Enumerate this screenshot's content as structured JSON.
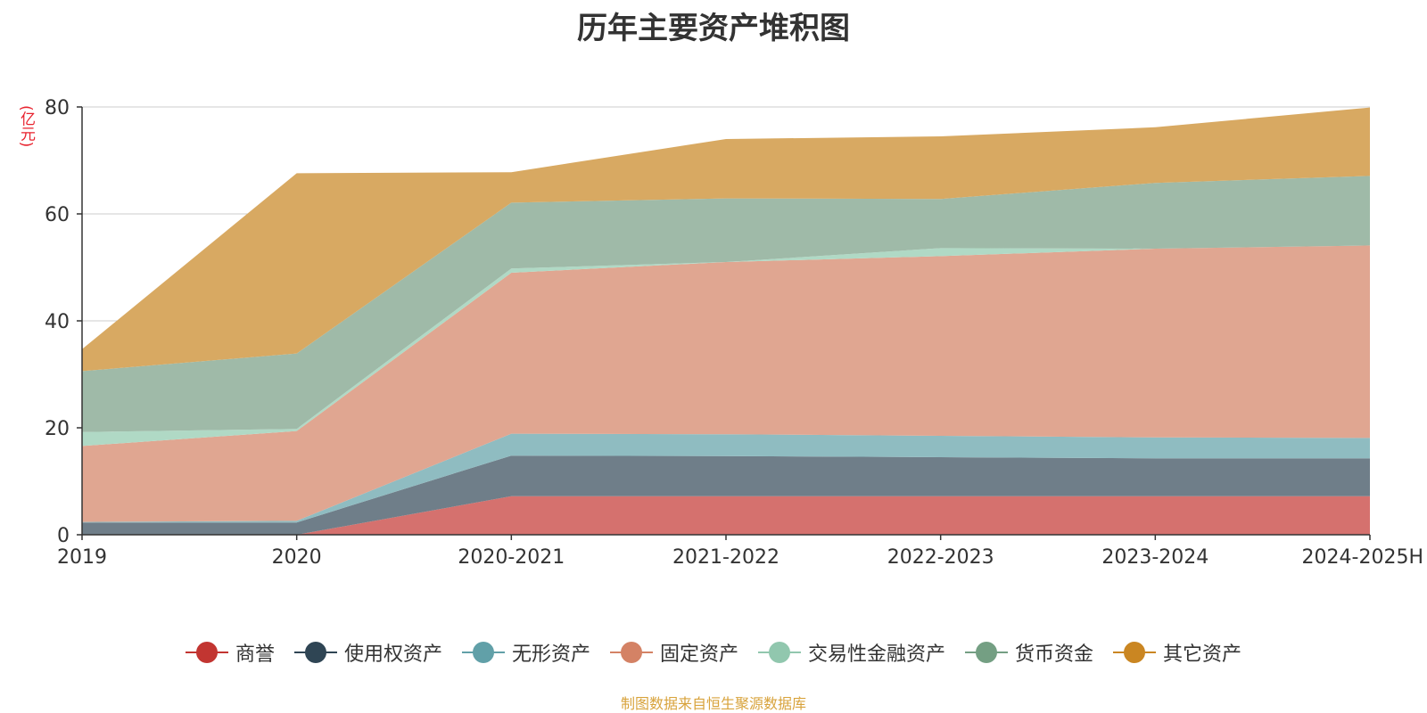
{
  "title": "历年主要资产堆积图",
  "unit": "(亿元)",
  "source": "制图数据来自恒生聚源数据库",
  "chart_data": {
    "type": "area",
    "stacked": true,
    "categories": [
      "2019",
      "2020",
      "2020-2021",
      "2021-2022",
      "2022-2023",
      "2023-2024",
      "2024-2025H"
    ],
    "ylim": [
      0,
      80
    ],
    "yticks": [
      0,
      20,
      40,
      60,
      80
    ],
    "grid": true,
    "legend_position": "bottom",
    "series": [
      {
        "name": "商誉",
        "color": "#c23531",
        "fill": "#d5716e",
        "values": [
          0,
          0,
          7.2,
          7.2,
          7.2,
          7.2,
          7.2
        ]
      },
      {
        "name": "使用权资产",
        "color": "#2f4554",
        "fill": "#6f7e89",
        "values": [
          2.3,
          2.3,
          7.6,
          7.5,
          7.3,
          7.1,
          7.1
        ]
      },
      {
        "name": "无形资产",
        "color": "#61a0a8",
        "fill": "#8fbcc1",
        "values": [
          0.1,
          0.3,
          4.1,
          4.1,
          4.0,
          3.9,
          3.8
        ]
      },
      {
        "name": "固定资产",
        "color": "#d48265",
        "fill": "#e0a691",
        "values": [
          14.2,
          16.8,
          30.1,
          32.2,
          33.6,
          35.3,
          36.0
        ]
      },
      {
        "name": "交易性金融资产",
        "color": "#91c7ae",
        "fill": "#b0d9c5",
        "values": [
          2.6,
          0.4,
          0.8,
          0,
          1.5,
          0,
          0
        ]
      },
      {
        "name": "货币资金",
        "color": "#749f83",
        "fill": "#9fbaa8",
        "values": [
          11.4,
          14.1,
          12.3,
          11.9,
          9.2,
          12.3,
          13.0
        ]
      },
      {
        "name": "其它资产",
        "color": "#ca8622",
        "fill": "#d8a962",
        "values": [
          4.1,
          33.7,
          5.7,
          11.1,
          11.7,
          10.4,
          12.8
        ]
      }
    ]
  }
}
